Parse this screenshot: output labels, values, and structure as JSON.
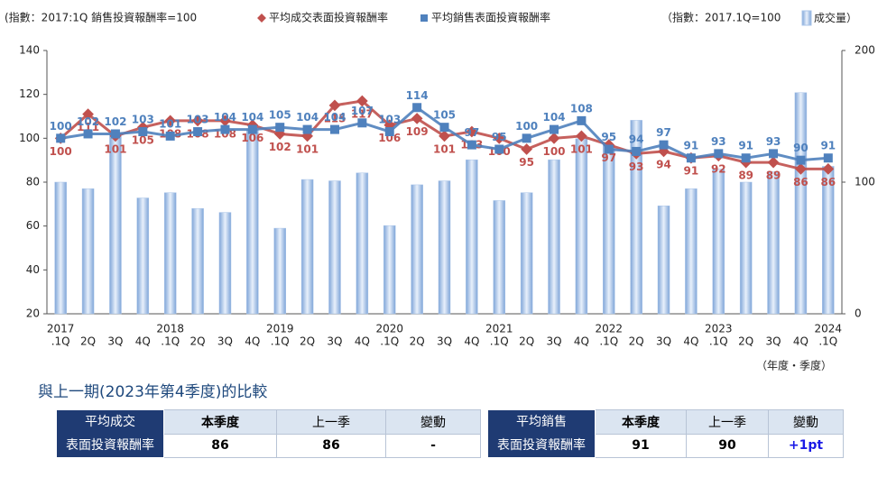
{
  "header": {
    "note_left": "(指數：2017:1Q 銷售投資報酬率=100",
    "note_right": "（指數：2017.1Q=100",
    "note_right_close": "）"
  },
  "chart_data": {
    "type": "combo",
    "categories": [
      [
        "2017",
        ".1Q"
      ],
      [
        "2Q"
      ],
      [
        "3Q"
      ],
      [
        "4Q"
      ],
      [
        "2018",
        ".1Q"
      ],
      [
        "2Q"
      ],
      [
        "3Q"
      ],
      [
        "4Q"
      ],
      [
        "2019",
        ".1Q"
      ],
      [
        "2Q"
      ],
      [
        "3Q"
      ],
      [
        "4Q"
      ],
      [
        "2020",
        ".1Q"
      ],
      [
        "2Q"
      ],
      [
        "3Q"
      ],
      [
        "4Q"
      ],
      [
        "2021",
        ".1Q"
      ],
      [
        "2Q"
      ],
      [
        "3Q"
      ],
      [
        "4Q"
      ],
      [
        "2022",
        ".1Q"
      ],
      [
        "2Q"
      ],
      [
        "3Q"
      ],
      [
        "4Q"
      ],
      [
        "2023",
        ".1Q"
      ],
      [
        "2Q"
      ],
      [
        "3Q"
      ],
      [
        "4Q"
      ],
      [
        "2024",
        ".1Q"
      ]
    ],
    "series": [
      {
        "name": "成交量",
        "type": "bar",
        "axis": "y2",
        "color": "#a9c4e8",
        "values": [
          100,
          95,
          137,
          88,
          92,
          80,
          77,
          140,
          65,
          102,
          101,
          107,
          67,
          98,
          101,
          117,
          86,
          92,
          117,
          133,
          128,
          147,
          82,
          95,
          110,
          100,
          108,
          168,
          112
        ]
      },
      {
        "name": "平均成交表面投資報酬率",
        "type": "line",
        "marker": "diamond",
        "color": "#c0504d",
        "values": [
          100,
          111,
          101,
          105,
          108,
          108,
          108,
          106,
          102,
          101,
          115,
          117,
          106,
          109,
          101,
          103,
          100,
          95,
          100,
          101,
          97,
          93,
          94,
          91,
          92,
          89,
          89,
          86,
          86
        ]
      },
      {
        "name": "平均銷售表面投資報酬率",
        "type": "line",
        "marker": "square",
        "color": "#4f81bd",
        "values": [
          100,
          102,
          102,
          103,
          101,
          103,
          104,
          104,
          105,
          104,
          104,
          107,
          103,
          114,
          105,
          97,
          95,
          100,
          104,
          108,
          95,
          94,
          97,
          91,
          93,
          91,
          93,
          90,
          91
        ]
      }
    ],
    "ylim": [
      20,
      140
    ],
    "yticks": [
      20,
      40,
      60,
      80,
      100,
      120,
      140
    ],
    "y2lim": [
      0,
      200
    ],
    "y2ticks": [
      0,
      100,
      200
    ],
    "x_unit_label": "（年度・季度）"
  },
  "comparison": {
    "title": "與上一期(2023年第4季度)的比較",
    "tables": [
      {
        "row_header": [
          "平均成交",
          "表面投資報酬率"
        ],
        "columns": [
          "本季度",
          "上一季",
          "變動"
        ],
        "values": [
          "86",
          "86",
          "-"
        ]
      },
      {
        "row_header": [
          "平均銷售",
          "表面投資報酬率"
        ],
        "columns": [
          "本季度",
          "上一季",
          "變動"
        ],
        "values": [
          "91",
          "90",
          "+1pt"
        ]
      }
    ]
  }
}
